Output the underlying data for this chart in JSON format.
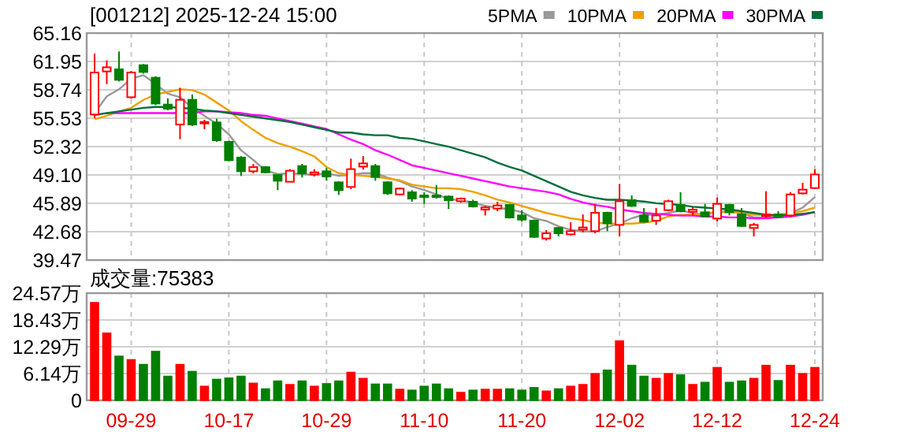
{
  "chart_data": [
    {
      "type": "candlestick",
      "title": "[001212]  2025-12-24 15:00",
      "categories": [
        null,
        null,
        null,
        null,
        null,
        null,
        null,
        null,
        null,
        null,
        null,
        null,
        null,
        null,
        null,
        null,
        null,
        null,
        null,
        null,
        null,
        null,
        null,
        null,
        null,
        null,
        null,
        null,
        null,
        null,
        null,
        null,
        null,
        null,
        null,
        null,
        null,
        null,
        null,
        null,
        null,
        null,
        null,
        null,
        null,
        null,
        null,
        null,
        null,
        null,
        null,
        null,
        null,
        null,
        null,
        null,
        null,
        null,
        null,
        null
      ],
      "ohlc": [
        [
          55.94,
          62.84,
          55.53,
          60.7
        ],
        [
          60.82,
          62.07,
          59.39,
          61.29
        ],
        [
          61.06,
          63.08,
          59.69,
          59.87
        ],
        [
          57.9,
          60.88,
          57.73,
          60.7
        ],
        [
          61.53,
          61.65,
          60.58,
          60.76
        ],
        [
          60.11,
          60.28,
          57.01,
          57.19
        ],
        [
          57.07,
          57.79,
          56.42,
          56.6
        ],
        [
          54.81,
          58.98,
          53.15,
          57.61
        ],
        [
          57.61,
          58.2,
          54.63,
          54.81
        ],
        [
          54.99,
          55.35,
          54.28,
          55.11
        ],
        [
          55.05,
          55.47,
          52.85,
          53.03
        ],
        [
          52.85,
          52.97,
          50.65,
          50.77
        ],
        [
          51.07,
          51.24,
          48.98,
          49.52
        ],
        [
          49.52,
          50.35,
          49.28,
          49.99
        ],
        [
          49.99,
          50.11,
          49.28,
          49.4
        ],
        [
          49.1,
          49.1,
          47.38,
          48.45
        ],
        [
          48.33,
          49.76,
          48.33,
          49.58
        ],
        [
          50.11,
          50.35,
          48.81,
          49.28
        ],
        [
          49.16,
          49.76,
          48.93,
          49.4
        ],
        [
          49.52,
          49.88,
          48.45,
          48.93
        ],
        [
          48.27,
          48.39,
          46.84,
          47.38
        ],
        [
          47.74,
          50.95,
          47.5,
          49.76
        ],
        [
          50.05,
          51.24,
          49.7,
          50.41
        ],
        [
          50.11,
          50.35,
          48.45,
          48.87
        ],
        [
          48.27,
          48.39,
          46.84,
          47.02
        ],
        [
          46.9,
          47.68,
          46.78,
          47.56
        ],
        [
          47.14,
          47.38,
          46.07,
          46.43
        ],
        [
          46.78,
          47.14,
          45.83,
          46.66
        ],
        [
          46.78,
          47.97,
          46.43,
          46.6
        ],
        [
          46.66,
          46.78,
          45.24,
          46.25
        ],
        [
          46.13,
          46.55,
          45.95,
          46.43
        ],
        [
          46.07,
          46.31,
          45.42,
          45.54
        ],
        [
          45.18,
          45.6,
          44.52,
          45.42
        ],
        [
          45.3,
          46.07,
          44.99,
          45.65
        ],
        [
          45.71,
          45.83,
          44.17,
          44.29
        ],
        [
          44.52,
          45.12,
          43.81,
          44.05
        ],
        [
          43.93,
          44.05,
          41.97,
          42.09
        ],
        [
          41.91,
          42.86,
          41.67,
          42.5
        ],
        [
          43.1,
          43.22,
          42.14,
          42.5
        ],
        [
          42.38,
          43.75,
          42.26,
          42.74
        ],
        [
          42.92,
          44.64,
          42.62,
          43.16
        ],
        [
          42.74,
          45.83,
          42.5,
          44.82
        ],
        [
          44.82,
          44.94,
          42.74,
          43.63
        ],
        [
          43.45,
          48.09,
          42.14,
          46.13
        ],
        [
          46.25,
          46.78,
          45.48,
          45.6
        ],
        [
          44.52,
          45.36,
          43.69,
          43.81
        ],
        [
          43.93,
          45.36,
          43.45,
          44.52
        ],
        [
          45.12,
          46.31,
          44.99,
          46.13
        ],
        [
          45.71,
          47.14,
          44.88,
          44.99
        ],
        [
          44.94,
          45.48,
          44.52,
          45.18
        ],
        [
          44.88,
          45.83,
          44.41,
          44.41
        ],
        [
          44.17,
          46.55,
          43.81,
          45.83
        ],
        [
          45.71,
          45.83,
          44.52,
          44.88
        ],
        [
          44.64,
          45.36,
          43.22,
          43.33
        ],
        [
          43.1,
          43.69,
          42.14,
          43.45
        ],
        [
          44.52,
          47.26,
          44.29,
          44.64
        ],
        [
          44.64,
          45.0,
          44.29,
          44.35
        ],
        [
          44.52,
          47.14,
          44.29,
          46.9
        ],
        [
          47.02,
          48.21,
          46.9,
          47.44
        ],
        [
          47.62,
          49.76,
          47.5,
          49.16
        ]
      ],
      "colors": [
        "#ff0000",
        "#ff0000",
        "#008000",
        "#ff0000",
        "#008000",
        "#008000",
        "#008000",
        "#ff0000",
        "#008000",
        "#ff0000",
        "#008000",
        "#008000",
        "#008000",
        "#ff0000",
        "#008000",
        "#008000",
        "#ff0000",
        "#008000",
        "#ff0000",
        "#008000",
        "#008000",
        "#ff0000",
        "#ff0000",
        "#008000",
        "#008000",
        "#ff0000",
        "#008000",
        "#008000",
        "#008000",
        "#008000",
        "#ff0000",
        "#008000",
        "#ff0000",
        "#ff0000",
        "#008000",
        "#008000",
        "#008000",
        "#ff0000",
        "#008000",
        "#ff0000",
        "#ff0000",
        "#ff0000",
        "#008000",
        "#ff0000",
        "#008000",
        "#008000",
        "#ff0000",
        "#ff0000",
        "#008000",
        "#ff0000",
        "#008000",
        "#ff0000",
        "#008000",
        "#008000",
        "#ff0000",
        "#ff0000",
        "#008000",
        "#ff0000",
        "#ff0000",
        "#ff0000"
      ],
      "series": [
        {
          "name": "5PMA",
          "type": "line",
          "color": "#999999",
          "values": [
            56.1,
            58.0,
            58.8,
            60.0,
            60.4,
            59.4,
            58.3,
            57.9,
            56.7,
            55.8,
            54.9,
            53.7,
            51.9,
            50.8,
            49.6,
            49.2,
            49.3,
            49.2,
            49.1,
            49.3,
            49.0,
            49.1,
            49.3,
            49.3,
            48.8,
            48.4,
            47.8,
            47.4,
            46.9,
            46.4,
            46.2,
            46.0,
            45.6,
            45.4,
            45.2,
            44.9,
            44.2,
            43.9,
            43.3,
            42.9,
            42.7,
            42.7,
            43.2,
            43.6,
            44.2,
            44.6,
            44.6,
            44.8,
            45.1,
            44.8,
            44.6,
            44.9,
            45.0,
            44.8,
            44.3,
            44.3,
            44.4,
            44.8,
            45.4,
            46.6
          ]
        },
        {
          "name": "10PMA",
          "type": "line",
          "color": "#f0a000",
          "values": [
            55.4,
            55.8,
            56.3,
            56.7,
            57.6,
            58.2,
            58.5,
            58.8,
            58.7,
            58.2,
            57.3,
            56.4,
            55.2,
            54.2,
            53.3,
            52.7,
            52.3,
            51.8,
            51.2,
            50.0,
            49.3,
            49.1,
            49.0,
            48.9,
            48.7,
            48.5,
            48.0,
            47.8,
            47.6,
            47.6,
            47.5,
            47.2,
            46.8,
            46.3,
            46.0,
            45.6,
            45.2,
            44.8,
            44.5,
            44.2,
            44.0,
            43.7,
            43.6,
            43.6,
            43.6,
            43.7,
            43.9,
            44.4,
            44.6,
            44.6,
            44.8,
            44.9,
            44.9,
            44.8,
            44.6,
            44.6,
            44.6,
            44.8,
            45.0,
            45.4
          ]
        },
        {
          "name": "20PMA",
          "type": "line",
          "color": "#ff00ff",
          "values": [
            null,
            56.1,
            56.1,
            56.1,
            56.1,
            56.1,
            56.1,
            56.1,
            56.1,
            56.3,
            56.3,
            56.2,
            56.1,
            55.9,
            55.8,
            55.5,
            55.2,
            54.9,
            54.6,
            54.3,
            53.7,
            53.1,
            52.6,
            51.9,
            51.4,
            50.8,
            50.2,
            49.9,
            49.6,
            49.3,
            49.0,
            48.7,
            48.4,
            48.1,
            47.8,
            47.6,
            47.4,
            47.2,
            46.9,
            46.4,
            46.0,
            45.7,
            45.5,
            45.2,
            45.0,
            44.8,
            44.7,
            44.6,
            44.5,
            44.5,
            44.4,
            44.4,
            44.3,
            44.3,
            44.2,
            44.2,
            44.3,
            44.4,
            44.6,
            44.9
          ]
        },
        {
          "name": "30PMA",
          "type": "line",
          "color": "#006f3c",
          "values": [
            55.9,
            56.1,
            56.3,
            56.5,
            56.7,
            56.8,
            56.8,
            56.7,
            56.6,
            56.4,
            56.3,
            56.1,
            55.9,
            55.7,
            55.5,
            55.3,
            55.1,
            54.8,
            54.5,
            54.2,
            53.9,
            53.9,
            53.7,
            53.6,
            53.6,
            53.3,
            53.2,
            52.9,
            52.6,
            52.3,
            51.9,
            51.5,
            51.1,
            50.5,
            50.0,
            49.6,
            49.0,
            48.4,
            47.8,
            47.2,
            46.8,
            46.5,
            46.3,
            46.3,
            46.2,
            46.1,
            45.9,
            45.8,
            45.7,
            45.5,
            45.4,
            45.3,
            45.2,
            45.0,
            44.8,
            44.6,
            44.5,
            44.6,
            44.7,
            44.9
          ]
        }
      ],
      "ylim": [
        39.47,
        65.16
      ],
      "yticks": [
        39.47,
        42.68,
        45.89,
        {
          "value": 49.1,
          "label": "49.10"
        },
        52.32,
        55.53,
        58.74,
        61.95,
        65.16
      ],
      "grid": true,
      "legend": "top right",
      "tick_labels": "y"
    },
    {
      "type": "bar",
      "title": "成交量:75383",
      "categories": [
        null,
        null,
        null,
        "09-29",
        null,
        null,
        null,
        null,
        null,
        null,
        null,
        "10-17",
        null,
        null,
        null,
        null,
        null,
        null,
        null,
        "10-29",
        null,
        null,
        null,
        null,
        null,
        null,
        null,
        "11-10",
        null,
        null,
        null,
        null,
        null,
        null,
        null,
        "11-20",
        null,
        null,
        null,
        null,
        null,
        null,
        null,
        "12-02",
        null,
        null,
        null,
        null,
        null,
        null,
        null,
        "12-12",
        null,
        null,
        null,
        null,
        null,
        null,
        null,
        "12-24"
      ],
      "values": [
        22.4,
        15.4,
        10.1,
        9.3,
        8.2,
        11.2,
        5.5,
        8.2,
        6.6,
        3.2,
        4.8,
        5.1,
        5.5,
        3.9,
        2.6,
        4.4,
        3.6,
        4.4,
        3.2,
        3.8,
        4.4,
        6.4,
        5.0,
        3.7,
        3.7,
        2.5,
        2.3,
        3.2,
        3.7,
        2.6,
        1.8,
        2.3,
        2.5,
        2.5,
        2.6,
        2.3,
        2.9,
        2.1,
        2.6,
        3.2,
        3.6,
        6.1,
        6.9,
        13.6,
        8.0,
        5.5,
        5.0,
        6.1,
        5.8,
        3.6,
        4.1,
        7.5,
        4.1,
        4.4,
        5.0,
        8.0,
        4.5,
        8.0,
        6.1,
        7.5
      ],
      "colors": [
        "#ff0000",
        "#ff0000",
        "#008000",
        "#ff0000",
        "#008000",
        "#008000",
        "#008000",
        "#ff0000",
        "#008000",
        "#ff0000",
        "#008000",
        "#008000",
        "#008000",
        "#ff0000",
        "#008000",
        "#008000",
        "#ff0000",
        "#008000",
        "#ff0000",
        "#008000",
        "#008000",
        "#ff0000",
        "#ff0000",
        "#008000",
        "#008000",
        "#ff0000",
        "#008000",
        "#008000",
        "#008000",
        "#008000",
        "#ff0000",
        "#008000",
        "#ff0000",
        "#ff0000",
        "#008000",
        "#008000",
        "#008000",
        "#ff0000",
        "#008000",
        "#ff0000",
        "#ff0000",
        "#ff0000",
        "#008000",
        "#ff0000",
        "#008000",
        "#008000",
        "#ff0000",
        "#ff0000",
        "#008000",
        "#ff0000",
        "#008000",
        "#ff0000",
        "#008000",
        "#008000",
        "#ff0000",
        "#ff0000",
        "#008000",
        "#ff0000",
        "#ff0000",
        "#ff0000"
      ],
      "ylim": [
        0,
        24.57
      ],
      "yticks": [
        0,
        {
          "value": 6.14,
          "label": "6.14万"
        },
        {
          "value": 12.29,
          "label": "12.29万"
        },
        {
          "value": 18.43,
          "label": "18.43万"
        },
        {
          "value": 24.57,
          "label": "24.57万"
        }
      ],
      "grid": true
    }
  ]
}
